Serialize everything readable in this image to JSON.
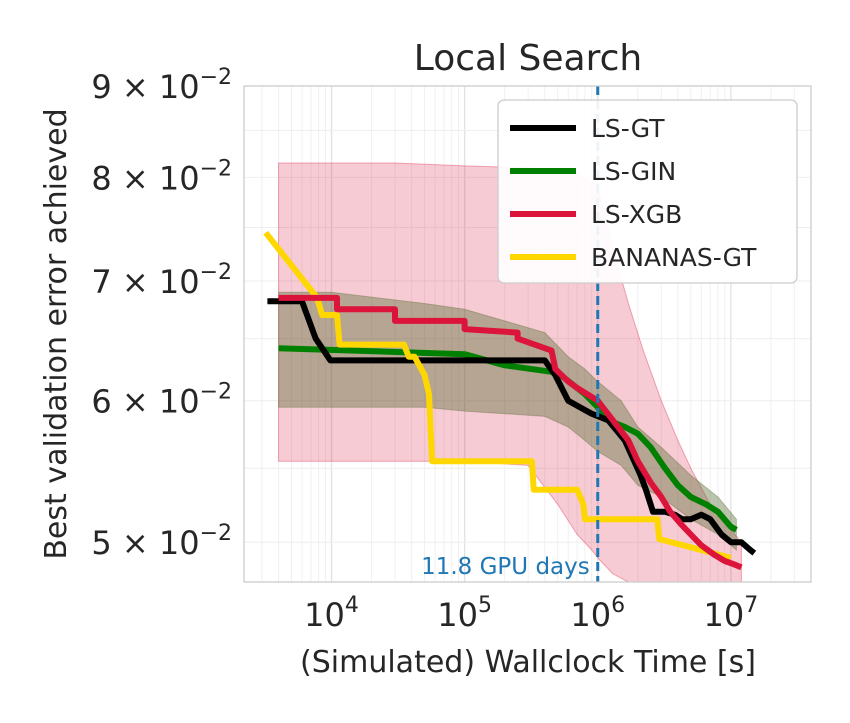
{
  "chart_data": {
    "type": "line",
    "title": "Local Search",
    "xlabel": "(Simulated) Wallclock Time [s]",
    "ylabel": "Best validation error achieved",
    "x_scale": "log",
    "y_scale": "log",
    "xlim": [
      2200,
      40000000
    ],
    "ylim": [
      0.0475,
      0.09
    ],
    "grid": true,
    "legend_position": "top-right",
    "x_ticks": [
      {
        "value": 10000,
        "base": "10",
        "exp": "4"
      },
      {
        "value": 100000,
        "base": "10",
        "exp": "5"
      },
      {
        "value": 1000000,
        "base": "10",
        "exp": "6"
      },
      {
        "value": 10000000,
        "base": "10",
        "exp": "7"
      }
    ],
    "y_ticks": [
      {
        "value": 0.05,
        "mantissa": "5",
        "times": "×",
        "base": "10",
        "exp": "−2"
      },
      {
        "value": 0.06,
        "mantissa": "6",
        "times": "×",
        "base": "10",
        "exp": "−2"
      },
      {
        "value": 0.07,
        "mantissa": "7",
        "times": "×",
        "base": "10",
        "exp": "−2"
      },
      {
        "value": 0.08,
        "mantissa": "8",
        "times": "×",
        "base": "10",
        "exp": "−2"
      },
      {
        "value": 0.09,
        "mantissa": "9",
        "times": "×",
        "base": "10",
        "exp": "−2"
      }
    ],
    "annotations": [
      {
        "type": "vline",
        "x": 1000000,
        "label": "11.8 GPU days",
        "color": "#1f77b4"
      }
    ],
    "series": [
      {
        "name": "LS-GT",
        "color": "#000000",
        "x": [
          3300,
          6000,
          7600,
          7600,
          9800,
          9800,
          400000,
          480000,
          600000,
          900000,
          1200000,
          1600000,
          2100000,
          2300000,
          2600000,
          3200000,
          3800000,
          4300000,
          5000000,
          6000000,
          7000000,
          8500000,
          10000000,
          12000000,
          14000000,
          15000000
        ],
        "y": [
          0.0682,
          0.0682,
          0.065,
          0.065,
          0.0632,
          0.0632,
          0.0632,
          0.062,
          0.06,
          0.059,
          0.0585,
          0.057,
          0.0545,
          0.0535,
          0.052,
          0.052,
          0.0518,
          0.0515,
          0.0515,
          0.0518,
          0.0515,
          0.0505,
          0.05,
          0.05,
          0.0495,
          0.0493
        ]
      },
      {
        "name": "LS-GIN",
        "color": "#008000",
        "x": [
          4000,
          100000,
          200000,
          500000,
          800000,
          1000000,
          1200000,
          1600000,
          2000000,
          2500000,
          3200000,
          4000000,
          5000000,
          6500000,
          8000000,
          10000000,
          11000000
        ],
        "y": [
          0.0642,
          0.0637,
          0.0628,
          0.0622,
          0.0605,
          0.0595,
          0.0585,
          0.058,
          0.0575,
          0.0565,
          0.055,
          0.0538,
          0.053,
          0.0525,
          0.052,
          0.051,
          0.0508
        ]
      },
      {
        "name": "LS-XGB",
        "color": "#dc143c",
        "x": [
          4000,
          11000,
          11000,
          30000,
          30000,
          100000,
          100000,
          250000,
          250000,
          450000,
          480000,
          600000,
          700000,
          1000000,
          1300000,
          1700000,
          2000000,
          2500000,
          3000000,
          3500000,
          4200000,
          5000000,
          6000000,
          7500000,
          9000000,
          10500000,
          12000000
        ],
        "y": [
          0.0685,
          0.0685,
          0.0675,
          0.0675,
          0.0665,
          0.0665,
          0.0658,
          0.0655,
          0.065,
          0.064,
          0.0625,
          0.0615,
          0.061,
          0.06,
          0.0585,
          0.057,
          0.0555,
          0.054,
          0.053,
          0.052,
          0.0512,
          0.0505,
          0.0498,
          0.0492,
          0.0488,
          0.0486,
          0.0484
        ]
      },
      {
        "name": "BANANAS-GT",
        "color": "#ffd700",
        "x": [
          3200,
          7800,
          8500,
          11000,
          11500,
          30000,
          35000,
          38000,
          42000,
          50000,
          54000,
          57000,
          320000,
          330000,
          700000,
          780000,
          800000,
          1000000,
          1200000,
          2800000,
          2900000,
          6000000,
          10000000
        ],
        "y": [
          0.0745,
          0.0685,
          0.067,
          0.067,
          0.0645,
          0.0645,
          0.0645,
          0.0635,
          0.0635,
          0.062,
          0.0605,
          0.0555,
          0.0555,
          0.0535,
          0.0535,
          0.0525,
          0.0515,
          0.0515,
          0.0515,
          0.0515,
          0.0502,
          0.0495,
          0.049
        ]
      }
    ],
    "bands": [
      {
        "series": "LS-XGB",
        "color": "#dc143c",
        "opacity": 0.22,
        "x": [
          4000,
          30000,
          100000,
          300000,
          500000,
          700000,
          900000,
          1000000,
          1300000,
          1700000,
          2200000,
          3000000,
          4000000,
          5000000,
          7000000,
          10000000,
          12000000
        ],
        "lower": [
          0.0555,
          0.0555,
          0.0555,
          0.0552,
          0.0525,
          0.0505,
          0.0495,
          0.049,
          0.048,
          0.0475,
          0.0475,
          0.0475,
          0.0475,
          0.0475,
          0.0475,
          0.0475,
          0.0475
        ],
        "upper": [
          0.0815,
          0.0815,
          0.0812,
          0.081,
          0.0808,
          0.0805,
          0.0795,
          0.079,
          0.073,
          0.068,
          0.064,
          0.06,
          0.057,
          0.055,
          0.0525,
          0.0508,
          0.05
        ]
      },
      {
        "series": "LS-GT",
        "color": "#556b2f",
        "opacity": 0.4,
        "x": [
          4000,
          10000,
          50000,
          100000,
          200000,
          400000,
          600000,
          800000,
          1000000,
          1500000,
          2000000,
          3000000,
          5000000,
          8000000,
          11000000
        ],
        "lower": [
          0.0595,
          0.0595,
          0.0595,
          0.0592,
          0.059,
          0.0588,
          0.058,
          0.057,
          0.0562,
          0.0552,
          0.0538,
          0.053,
          0.0515,
          0.0505,
          0.0495
        ],
        "upper": [
          0.069,
          0.069,
          0.068,
          0.0675,
          0.0665,
          0.0655,
          0.0635,
          0.0625,
          0.0615,
          0.06,
          0.058,
          0.0565,
          0.0545,
          0.053,
          0.0515
        ]
      }
    ]
  }
}
